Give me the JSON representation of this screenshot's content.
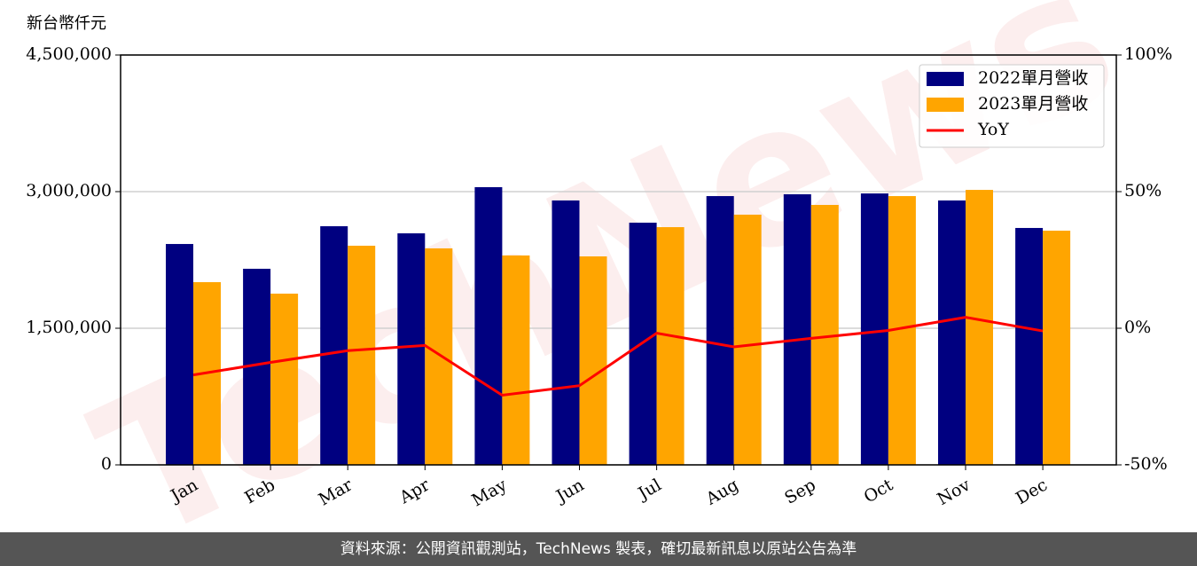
{
  "chart_data": {
    "type": "bar",
    "y_label": "新台幣仟元",
    "watermark": "TechNews",
    "categories": [
      "Jan",
      "Feb",
      "Mar",
      "Apr",
      "May",
      "Jun",
      "Jul",
      "Aug",
      "Sep",
      "Oct",
      "Nov",
      "Dec"
    ],
    "series": [
      {
        "name": "2022單月營收",
        "color": "#000080",
        "type": "bar",
        "values": [
          2425000,
          2153000,
          2620000,
          2542000,
          3049000,
          2903000,
          2659000,
          2951000,
          2971000,
          2980000,
          2903000,
          2601000
        ]
      },
      {
        "name": "2023單月營收",
        "color": "#ffa500",
        "type": "bar",
        "values": [
          2006000,
          1880000,
          2406000,
          2377000,
          2299000,
          2289000,
          2610000,
          2747000,
          2854000,
          2951000,
          3019000,
          2571000
        ]
      },
      {
        "name": "YoY",
        "color": "#ff0000",
        "type": "line",
        "axis": "y2",
        "values": [
          -17.1,
          -12.5,
          -8.2,
          -6.3,
          -24.5,
          -21.0,
          -1.8,
          -6.8,
          -3.7,
          -0.8,
          4.0,
          -1.0
        ]
      }
    ],
    "ylim": [
      0,
      4500000
    ],
    "yticks": [
      0,
      {
        "value": 1500000,
        "label": "1,500,000"
      },
      {
        "value": 3000000,
        "label": "3,000,000"
      },
      {
        "value": 4500000,
        "label": "4,500,000"
      }
    ],
    "y2lim": [
      -50,
      100
    ],
    "y2ticks": [
      {
        "value": -50,
        "label": "-50%"
      },
      {
        "value": 0,
        "label": "0%"
      },
      {
        "value": 50,
        "label": "50%"
      },
      {
        "value": 100,
        "label": "100%"
      }
    ],
    "grid": true,
    "legend": "upper right"
  },
  "footer": "資料來源：公開資訊觀測站，TechNews 製表，確切最新訊息以原站公告為準"
}
